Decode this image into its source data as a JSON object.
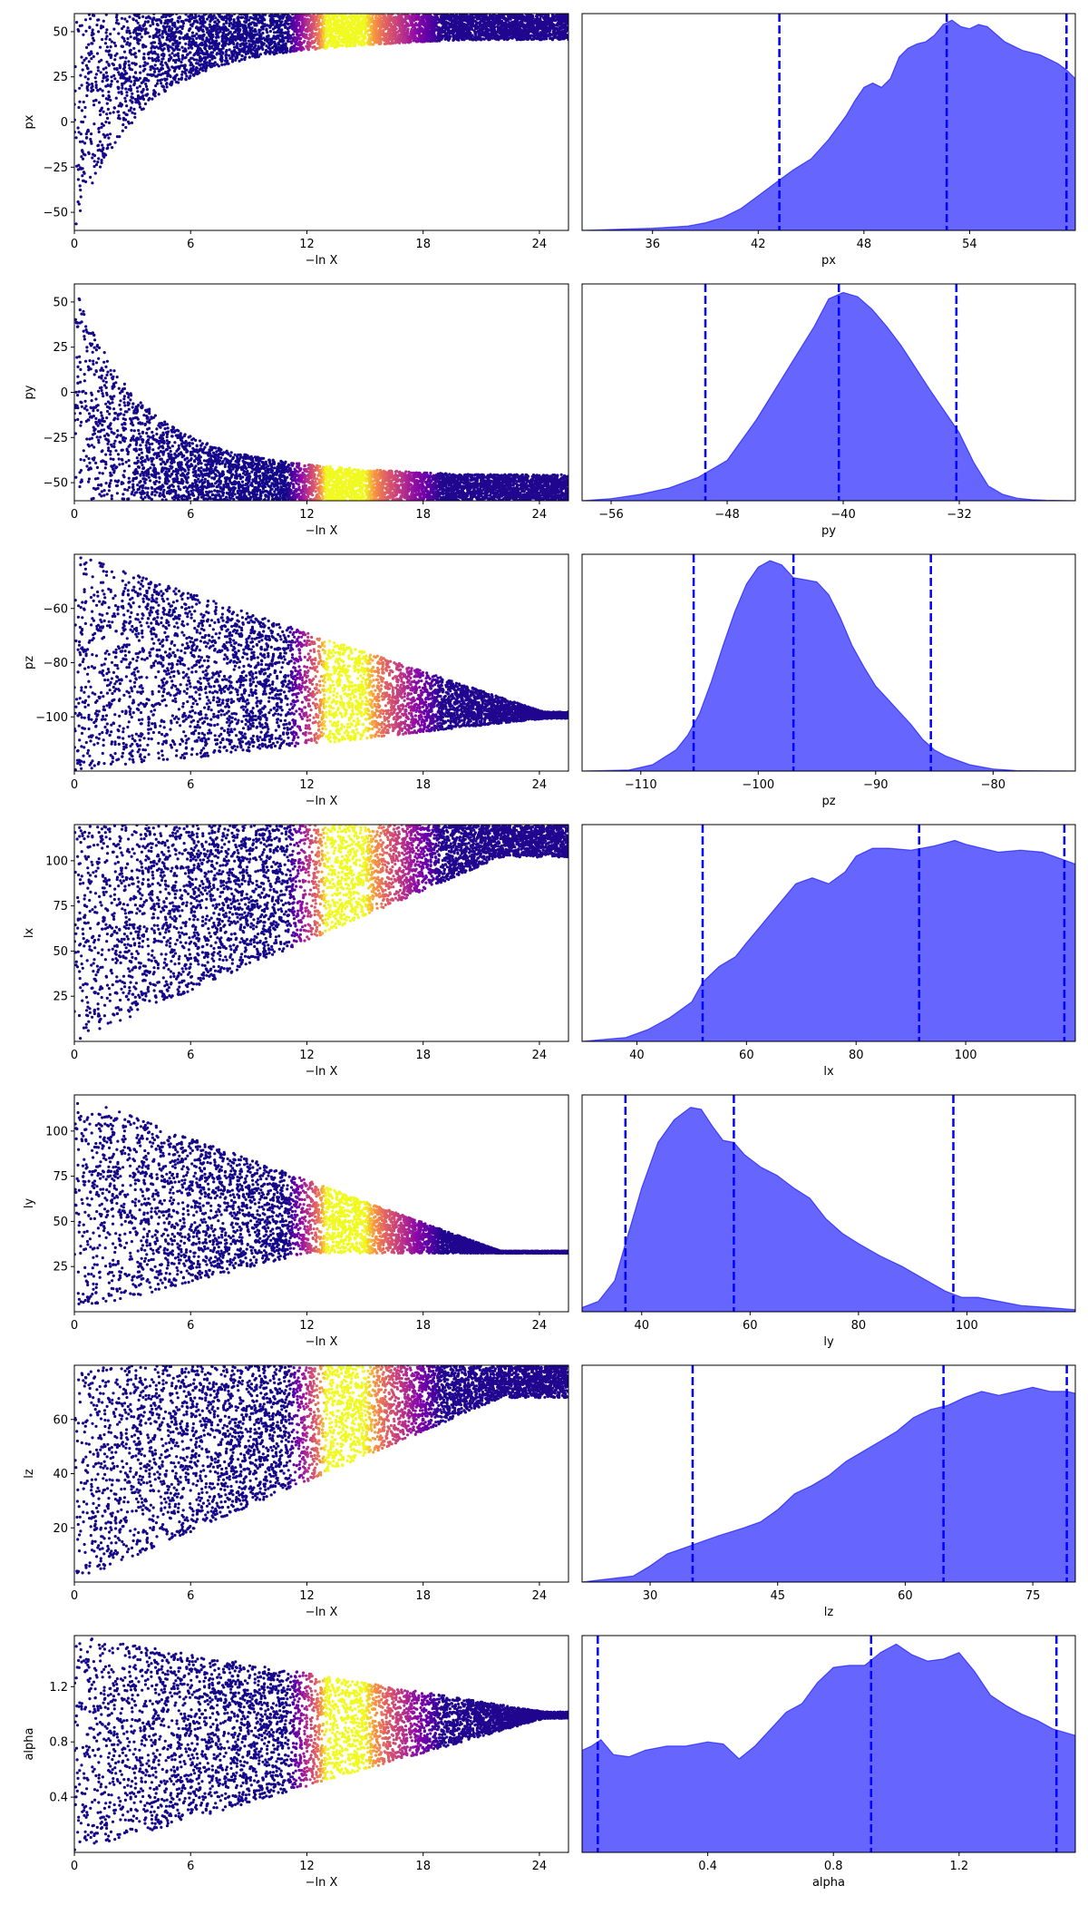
{
  "chart_data": [
    {
      "panel": "px-trace",
      "type": "scatter",
      "xlabel": "−ln X",
      "ylabel": "px",
      "xlim": [
        0,
        25.5
      ],
      "ylim": [
        -60,
        60
      ],
      "xticks": [
        0,
        6,
        12,
        18,
        24
      ],
      "yticks": [
        -50,
        -25,
        0,
        25,
        50
      ],
      "shape": "funnel-down",
      "colormap": "plasma",
      "bright_band": [
        12,
        18
      ]
    },
    {
      "panel": "px-posterior",
      "type": "area",
      "xlabel": "px",
      "xlim": [
        32,
        60
      ],
      "xticks": [
        36,
        42,
        48,
        54
      ],
      "color": "#0000ff",
      "x": [
        32,
        36,
        38,
        39,
        40,
        41,
        42,
        43,
        44,
        45,
        46,
        47,
        47.5,
        48,
        48.5,
        49,
        49.5,
        50,
        50.5,
        51,
        51.5,
        52,
        52.5,
        53,
        53.5,
        54,
        54.5,
        55,
        56,
        57,
        58,
        59,
        59.5,
        60
      ],
      "y": [
        0,
        0.01,
        0.02,
        0.035,
        0.06,
        0.1,
        0.16,
        0.22,
        0.28,
        0.33,
        0.42,
        0.53,
        0.6,
        0.66,
        0.68,
        0.66,
        0.7,
        0.8,
        0.84,
        0.86,
        0.87,
        0.9,
        0.95,
        0.97,
        0.94,
        0.93,
        0.95,
        0.94,
        0.87,
        0.83,
        0.81,
        0.77,
        0.74,
        0.7
      ],
      "ymax": 1.0,
      "quantiles": [
        43.2,
        52.7,
        59.5
      ]
    },
    {
      "panel": "py-trace",
      "type": "scatter",
      "xlabel": "−ln X",
      "ylabel": "py",
      "xlim": [
        0,
        25.5
      ],
      "ylim": [
        -60,
        60
      ],
      "xticks": [
        0,
        6,
        12,
        18,
        24
      ],
      "yticks": [
        -50,
        -25,
        0,
        25,
        50
      ],
      "shape": "funnel-up",
      "colormap": "plasma",
      "bright_band": [
        12,
        16
      ]
    },
    {
      "panel": "py-posterior",
      "type": "area",
      "xlabel": "py",
      "xlim": [
        -58,
        -24
      ],
      "xticks": [
        -56,
        -48,
        -40,
        -32
      ],
      "color": "#0000ff",
      "x": [
        -58,
        -56,
        -54,
        -52,
        -50,
        -48,
        -46,
        -44,
        -42,
        -41,
        -40,
        -39,
        -38,
        -37,
        -36,
        -34,
        -33,
        -32,
        -31,
        -30,
        -29,
        -28,
        -27,
        -26,
        -24
      ],
      "y": [
        0,
        0.01,
        0.03,
        0.06,
        0.11,
        0.19,
        0.38,
        0.6,
        0.82,
        0.95,
        0.98,
        0.96,
        0.9,
        0.82,
        0.73,
        0.52,
        0.42,
        0.32,
        0.18,
        0.07,
        0.03,
        0.012,
        0.005,
        0.002,
        0
      ],
      "ymax": 1.02,
      "quantiles": [
        -49.5,
        -40.3,
        -32.2
      ]
    },
    {
      "panel": "pz-trace",
      "type": "scatter",
      "xlabel": "−ln X",
      "ylabel": "pz",
      "xlim": [
        0,
        25.5
      ],
      "ylim": [
        -120,
        -40
      ],
      "xticks": [
        0,
        6,
        12,
        18,
        24
      ],
      "yticks": [
        -100,
        -80,
        -60
      ],
      "shape": "converge",
      "converge_to": -100,
      "colormap": "plasma",
      "bright_band": [
        12,
        17
      ]
    },
    {
      "panel": "pz-posterior",
      "type": "area",
      "xlabel": "pz",
      "xlim": [
        -115,
        -73
      ],
      "xticks": [
        -110,
        -100,
        -90,
        -80
      ],
      "color": "#0000ff",
      "x": [
        -115,
        -111,
        -109,
        -107,
        -106,
        -105,
        -104,
        -103,
        -102,
        -101,
        -100,
        -99,
        -98,
        -97,
        -96,
        -95,
        -94,
        -93,
        -92,
        -91,
        -90,
        -89,
        -88,
        -87,
        -86,
        -85,
        -84,
        -82,
        -80,
        -78,
        -73
      ],
      "y": [
        0,
        0.005,
        0.03,
        0.1,
        0.17,
        0.27,
        0.42,
        0.59,
        0.75,
        0.88,
        0.96,
        0.99,
        0.97,
        0.91,
        0.9,
        0.89,
        0.83,
        0.72,
        0.59,
        0.49,
        0.4,
        0.34,
        0.28,
        0.22,
        0.15,
        0.1,
        0.07,
        0.03,
        0.01,
        0.002,
        0
      ],
      "ymax": 1.02,
      "quantiles": [
        -105.5,
        -97,
        -85.3
      ]
    },
    {
      "panel": "lx-trace",
      "type": "scatter",
      "xlabel": "−ln X",
      "ylabel": "lx",
      "xlim": [
        0,
        25.5
      ],
      "ylim": [
        0,
        120
      ],
      "xticks": [
        0,
        6,
        12,
        18,
        24
      ],
      "yticks": [
        25,
        50,
        75,
        100
      ],
      "shape": "wedge-high",
      "colormap": "plasma",
      "bright_band": [
        12,
        18
      ]
    },
    {
      "panel": "lx-posterior",
      "type": "area",
      "xlabel": "lx",
      "xlim": [
        30,
        120
      ],
      "xticks": [
        40,
        60,
        80,
        100
      ],
      "color": "#0000ff",
      "x": [
        30,
        38,
        42,
        46,
        50,
        52,
        55,
        58,
        60,
        63,
        66,
        69,
        72,
        75,
        78,
        80,
        83,
        86,
        90,
        94,
        98,
        100,
        103,
        106,
        110,
        114,
        118,
        120
      ],
      "y": [
        0,
        0.02,
        0.06,
        0.12,
        0.2,
        0.3,
        0.38,
        0.43,
        0.5,
        0.6,
        0.7,
        0.8,
        0.83,
        0.8,
        0.86,
        0.94,
        0.98,
        0.98,
        0.97,
        0.99,
        1.02,
        1.0,
        0.98,
        0.96,
        0.97,
        0.96,
        0.92,
        0.9
      ],
      "ymax": 1.1,
      "quantiles": [
        52,
        91.5,
        118
      ]
    },
    {
      "panel": "ly-trace",
      "type": "scatter",
      "xlabel": "−ln X",
      "ylabel": "ly",
      "xlim": [
        0,
        25.5
      ],
      "ylim": [
        0,
        120
      ],
      "xticks": [
        0,
        6,
        12,
        18,
        24
      ],
      "yticks": [
        25,
        50,
        75,
        100
      ],
      "shape": "wedge-low",
      "colormap": "plasma",
      "bright_band": [
        12,
        17
      ]
    },
    {
      "panel": "ly-posterior",
      "type": "area",
      "xlabel": "ly",
      "xlim": [
        29,
        120
      ],
      "xticks": [
        40,
        60,
        80,
        100
      ],
      "color": "#0000ff",
      "x": [
        29,
        32,
        35,
        37,
        40,
        43,
        46,
        49,
        51,
        53,
        55,
        57,
        59,
        62,
        65,
        68,
        71,
        74,
        77,
        80,
        84,
        88,
        92,
        96,
        99,
        102,
        106,
        110,
        115,
        120
      ],
      "y": [
        0.02,
        0.05,
        0.15,
        0.33,
        0.6,
        0.82,
        0.93,
        0.99,
        0.98,
        0.9,
        0.83,
        0.82,
        0.76,
        0.7,
        0.66,
        0.6,
        0.55,
        0.45,
        0.38,
        0.33,
        0.27,
        0.22,
        0.16,
        0.1,
        0.07,
        0.07,
        0.05,
        0.03,
        0.02,
        0.01
      ],
      "ymax": 1.05,
      "quantiles": [
        37,
        57,
        97.5
      ]
    },
    {
      "panel": "lz-trace",
      "type": "scatter",
      "xlabel": "−ln X",
      "ylabel": "lz",
      "xlim": [
        0,
        25.5
      ],
      "ylim": [
        0,
        80
      ],
      "xticks": [
        0,
        6,
        12,
        18,
        24
      ],
      "yticks": [
        20,
        40,
        60
      ],
      "shape": "wedge-high",
      "colormap": "plasma",
      "bright_band": [
        12,
        18
      ]
    },
    {
      "panel": "lz-posterior",
      "type": "area",
      "xlabel": "lz",
      "xlim": [
        22,
        80
      ],
      "xticks": [
        30,
        45,
        60,
        75
      ],
      "color": "#0000ff",
      "x": [
        22,
        28,
        30,
        32,
        34,
        36,
        38,
        41,
        43,
        45,
        47,
        49,
        51,
        53,
        55,
        57,
        59,
        61,
        63,
        65,
        67,
        69,
        71,
        73,
        75,
        77,
        79,
        80
      ],
      "y": [
        0,
        0.03,
        0.08,
        0.14,
        0.17,
        0.2,
        0.23,
        0.27,
        0.3,
        0.36,
        0.44,
        0.48,
        0.53,
        0.6,
        0.65,
        0.7,
        0.75,
        0.82,
        0.86,
        0.88,
        0.92,
        0.95,
        0.93,
        0.95,
        0.97,
        0.95,
        0.95,
        0.94
      ],
      "ymax": 1.08,
      "quantiles": [
        35,
        64.5,
        79
      ]
    },
    {
      "panel": "alpha-trace",
      "type": "scatter",
      "xlabel": "−ln X",
      "ylabel": "alpha",
      "xlim": [
        0,
        25.5
      ],
      "ylim": [
        0,
        1.57
      ],
      "xticks": [
        0,
        6,
        12,
        18,
        24
      ],
      "yticks": [
        0.4,
        0.8,
        1.2
      ],
      "shape": "converge",
      "converge_to": 1.0,
      "colormap": "plasma",
      "bright_band": [
        12,
        17
      ]
    },
    {
      "panel": "alpha-posterior",
      "type": "area",
      "xlabel": "alpha",
      "xlim": [
        0,
        1.57
      ],
      "xticks": [
        0.4,
        0.8,
        1.2
      ],
      "color": "#0000ff",
      "x": [
        0,
        0.03,
        0.06,
        0.1,
        0.15,
        0.2,
        0.27,
        0.33,
        0.4,
        0.45,
        0.5,
        0.55,
        0.6,
        0.65,
        0.7,
        0.75,
        0.8,
        0.85,
        0.9,
        0.95,
        1.0,
        1.05,
        1.1,
        1.15,
        1.2,
        1.25,
        1.3,
        1.35,
        1.4,
        1.45,
        1.5,
        1.57
      ],
      "y": [
        0.48,
        0.5,
        0.53,
        0.46,
        0.45,
        0.48,
        0.5,
        0.5,
        0.52,
        0.51,
        0.44,
        0.5,
        0.58,
        0.66,
        0.7,
        0.8,
        0.87,
        0.88,
        0.88,
        0.94,
        0.98,
        0.93,
        0.9,
        0.91,
        0.94,
        0.85,
        0.74,
        0.69,
        0.65,
        0.62,
        0.58,
        0.55
      ],
      "ymax": 1.02,
      "quantiles": [
        0.05,
        0.92,
        1.51
      ]
    }
  ]
}
